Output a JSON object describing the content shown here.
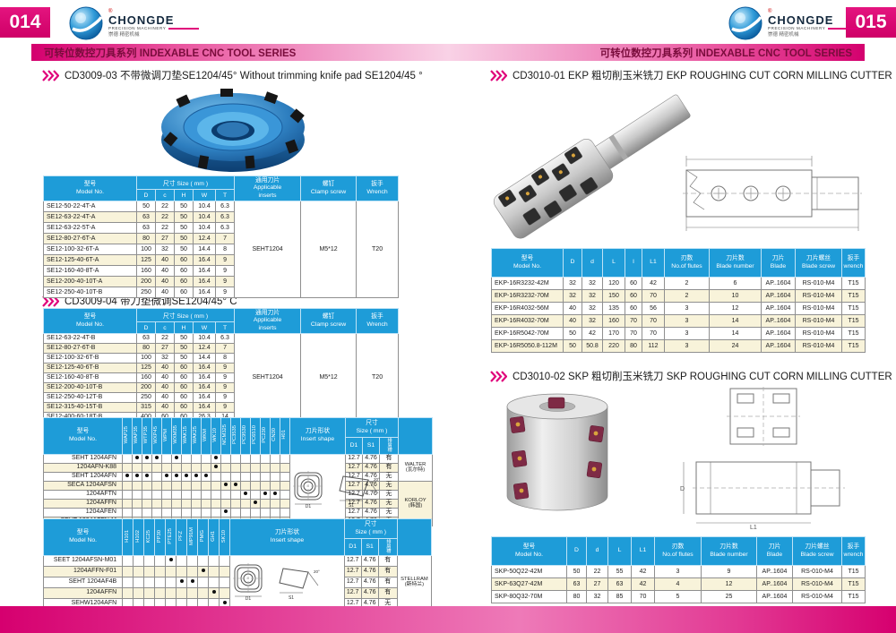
{
  "brand": {
    "wordmark": "CHONGDE",
    "sub": "PRECISION MACHINERY",
    "zh": "崇德 精密机械",
    "reg": "®"
  },
  "banner_text": "可转位数控刀具系列 INDEXABLE CNC TOOL SERIES",
  "left_page": {
    "number": "014",
    "sections": [
      {
        "title": "CD3009-03  不带微调刀垫SE1204/45°    Without trimming knife pad SE1204/45 °"
      },
      {
        "title": "CD3009-04 带刀垫微调SE1204/45°      C"
      }
    ]
  },
  "right_page": {
    "number": "015",
    "sections": [
      {
        "title": "CD3010-01  EKP 粗切削玉米铣刀  EKP ROUGHING CUT CORN MILLING CUTTER"
      },
      {
        "title": "CD3010-02  SKP 粗切削玉米铣刀  SKP ROUGHING CUT CORN MILLING CUTTER"
      }
    ]
  },
  "drawing_labels": {
    "d1": "D1",
    "s1": "S1",
    "angle": "20°",
    "D": "D",
    "L1": "L1"
  },
  "colors": {
    "accent_magenta": "#e0007a",
    "table_header_blue": "#1e9cd8",
    "row_beige": "#f8f3da",
    "banner_text": "#7a0c3c"
  },
  "tables": {
    "se_a": {
      "headers": {
        "model": [
          "型号",
          "Model No."
        ],
        "size": "尺寸 Size ( mm )",
        "size_cols": [
          "D",
          "c",
          "H",
          "W",
          "T"
        ],
        "inserts": [
          "通用刀片",
          "Applicable",
          "inserts"
        ],
        "screw": [
          "螺钉",
          "Clamp screw"
        ],
        "wrench": [
          "扳手",
          "Wrench"
        ]
      },
      "rows": [
        [
          "SE12-50-22-4T-A",
          "50",
          "22",
          "50",
          "10.4",
          "6.3"
        ],
        [
          "SE12-63-22-4T-A",
          "63",
          "22",
          "50",
          "10.4",
          "6.3"
        ],
        [
          "SE12-63-22-5T-A",
          "63",
          "22",
          "50",
          "10.4",
          "6.3"
        ],
        [
          "SE12-80-27-6T-A",
          "80",
          "27",
          "50",
          "12.4",
          "7"
        ],
        [
          "SE12-100-32-6T-A",
          "100",
          "32",
          "50",
          "14.4",
          "8"
        ],
        [
          "SE12-125-40-6T-A",
          "125",
          "40",
          "60",
          "16.4",
          "9"
        ],
        [
          "SE12-160-40-8T-A",
          "160",
          "40",
          "60",
          "16.4",
          "9"
        ],
        [
          "SE12-200-40-10T-A",
          "200",
          "40",
          "60",
          "16.4",
          "9"
        ],
        [
          "SE12-250-40-10T-B",
          "250",
          "40",
          "60",
          "16.4",
          "9"
        ]
      ],
      "inserts": "SEHT1204",
      "screw": "M5*12",
      "wrench": "T20"
    },
    "se_b": {
      "headers": {
        "model": [
          "型号",
          "Model No."
        ],
        "size": "尺寸 Size ( mm )",
        "size_cols": [
          "D",
          "c",
          "H",
          "W",
          "T"
        ],
        "inserts": [
          "通用刀片",
          "Applicable",
          "inserts"
        ],
        "screw": [
          "螺钉",
          "Clamp screw"
        ],
        "wrench": [
          "扳手",
          "Wrench"
        ]
      },
      "rows": [
        [
          "SE12-63-22-4T-B",
          "63",
          "22",
          "50",
          "10.4",
          "6.3"
        ],
        [
          "SE12-80-27-6T-B",
          "80",
          "27",
          "50",
          "12.4",
          "7"
        ],
        [
          "SE12-100-32-6T-B",
          "100",
          "32",
          "50",
          "14.4",
          "8"
        ],
        [
          "SE12-125-40-6T-B",
          "125",
          "40",
          "60",
          "16.4",
          "9"
        ],
        [
          "SE12-160-40-8T-B",
          "160",
          "40",
          "60",
          "16.4",
          "9"
        ],
        [
          "SE12-200-40-10T-B",
          "200",
          "40",
          "60",
          "16.4",
          "9"
        ],
        [
          "SE12-250-40-12T-B",
          "250",
          "40",
          "60",
          "16.4",
          "9"
        ],
        [
          "SE12-315-40-15T-B",
          "315",
          "40",
          "60",
          "16.4",
          "9"
        ],
        [
          "SE12-400-60-18T-B",
          "400",
          "60",
          "60",
          "26.3",
          "14"
        ]
      ],
      "inserts": "SEHT1204",
      "screw": "M5*12",
      "wrench": "T20"
    },
    "grades1": {
      "headers": {
        "model": [
          "型号",
          "Model No."
        ],
        "shape": [
          "刀片形状",
          "Insert shape"
        ],
        "size": [
          "尺寸",
          "Size ( mm )"
        ],
        "sub": [
          "D1",
          "S1",
          "排屑槽"
        ]
      },
      "cols": [
        "WAP25",
        "WAP35",
        "WTP35",
        "WXP45",
        "WPM",
        "WXM35",
        "WAK15",
        "WAK25",
        "WKM",
        "WK10",
        "NCM325",
        "PC3535",
        "PC9530",
        "PC6510",
        "PC230",
        "CN30",
        "H01"
      ],
      "rows": [
        {
          "model": "SEHT 1204AFN",
          "dots": [
            1,
            2,
            3,
            5,
            9
          ],
          "d1": "12.7",
          "s1": "4.76",
          "groove": "有"
        },
        {
          "model": "1204AFN-K88",
          "dots": [
            9
          ],
          "d1": "12.7",
          "s1": "4.76",
          "groove": "有"
        },
        {
          "model": "SEHT 1204AFN",
          "dots": [
            0,
            1,
            2,
            4,
            5,
            6,
            7,
            8
          ],
          "d1": "12.7",
          "s1": "4.76",
          "groove": "无"
        },
        {
          "model": "SECA 1204AFSN",
          "dots": [
            10,
            11
          ],
          "d1": "12.7",
          "s1": "4.76",
          "groove": "无"
        },
        {
          "model": "1204AFTN",
          "dots": [
            12,
            14,
            15
          ],
          "d1": "12.7",
          "s1": "4.76",
          "groove": "无"
        },
        {
          "model": "1204AFFN",
          "dots": [
            13
          ],
          "d1": "12.7",
          "s1": "4.76",
          "groove": "无"
        },
        {
          "model": "1204AFEN",
          "dots": [
            10
          ],
          "d1": "12.7",
          "s1": "4.76",
          "groove": "无"
        },
        {
          "model": "SEHT 1204AFFN-M",
          "dots": [
            16
          ],
          "d1": "12.7",
          "s1": "4.76",
          "groove": "无"
        }
      ],
      "brands": [
        {
          "name": "WALTER",
          "zh": "(瓦尔特)",
          "rows": 3
        },
        {
          "name": "KORLOY",
          "zh": "(韩国)",
          "rows": 5
        }
      ]
    },
    "grades2": {
      "headers": {
        "model": [
          "型号",
          "Model No."
        ],
        "shape": [
          "刀片形状",
          "Insert shape"
        ],
        "size": [
          "尺寸",
          "Size ( mm )"
        ],
        "sub": [
          "D1",
          "S1",
          "排屑槽"
        ]
      },
      "cols": [
        "H101",
        "H102",
        "KC25",
        "PP30",
        "PTE25",
        "PFZ",
        "MP91M",
        "PMG",
        "GH1",
        "SK10"
      ],
      "rows": [
        {
          "model": "SEET 1204AFSN-M01",
          "dots": [
            4
          ],
          "d1": "12.7",
          "s1": "4.76",
          "groove": "有"
        },
        {
          "model": "1204AFFN-F01",
          "dots": [
            7
          ],
          "d1": "12.7",
          "s1": "4.76",
          "groove": "有"
        },
        {
          "model": "SEHT 1204AF4B",
          "dots": [
            5,
            6
          ],
          "d1": "12.7",
          "s1": "4.76",
          "groove": "有"
        },
        {
          "model": "1204AFFN",
          "dots": [
            8
          ],
          "d1": "12.7",
          "s1": "4.76",
          "groove": "有"
        },
        {
          "model": "SEHW1204AFN",
          "dots": [
            9
          ],
          "d1": "12.7",
          "s1": "4.76",
          "groove": "无"
        }
      ],
      "brands": [
        {
          "name": "STELLRAM",
          "zh": "(斯特兰)",
          "rows": 5
        }
      ]
    },
    "ekp": {
      "cols": [
        [
          "型号",
          "Model No."
        ],
        [
          "D"
        ],
        [
          "d"
        ],
        [
          "L"
        ],
        [
          "l"
        ],
        [
          "L1"
        ],
        [
          "刃数",
          "No.of  flutes"
        ],
        [
          "刀片数",
          "Blade number"
        ],
        [
          "刀片",
          "Blade"
        ],
        [
          "刀片螺丝",
          "Blade screw"
        ],
        [
          "扳手",
          "wrench"
        ]
      ],
      "rows": [
        [
          "EKP-16R3232-42M",
          "32",
          "32",
          "120",
          "60",
          "42",
          "2",
          "6",
          "AP..1604",
          "RS-010-M4",
          "T15"
        ],
        [
          "EKP-16R3232-70M",
          "32",
          "32",
          "150",
          "60",
          "70",
          "2",
          "10",
          "AP..1604",
          "RS-010-M4",
          "T15"
        ],
        [
          "EKP-16R4032-56M",
          "40",
          "32",
          "135",
          "60",
          "56",
          "3",
          "12",
          "AP..1604",
          "RS-010-M4",
          "T15"
        ],
        [
          "EKP-16R4032-70M",
          "40",
          "32",
          "160",
          "70",
          "70",
          "3",
          "14",
          "AP..1604",
          "RS-010-M4",
          "T15"
        ],
        [
          "EKP-16R5042-70M",
          "50",
          "42",
          "170",
          "70",
          "70",
          "3",
          "14",
          "AP..1604",
          "RS-010-M4",
          "T15"
        ],
        [
          "EKP-16R5050.8-112M",
          "50",
          "50.8",
          "220",
          "80",
          "112",
          "3",
          "24",
          "AP..1604",
          "RS-010-M4",
          "T15"
        ]
      ]
    },
    "skp": {
      "cols": [
        [
          "型号",
          "Model No."
        ],
        [
          "D"
        ],
        [
          "d"
        ],
        [
          "L"
        ],
        [
          "L1"
        ],
        [
          "刃数",
          "No.of  flutes"
        ],
        [
          "刀片数",
          "Blade number"
        ],
        [
          "刀片",
          "Blade"
        ],
        [
          "刀片螺丝",
          "Blade screw"
        ],
        [
          "扳手",
          "wrench"
        ]
      ],
      "rows": [
        [
          "SKP-50Q22-42M",
          "50",
          "22",
          "55",
          "42",
          "3",
          "9",
          "AP..1604",
          "RS-010-M4",
          "T15"
        ],
        [
          "SKP-63Q27-42M",
          "63",
          "27",
          "63",
          "42",
          "4",
          "12",
          "AP..1604",
          "RS-010-M4",
          "T15"
        ],
        [
          "SKP-80Q32-70M",
          "80",
          "32",
          "85",
          "70",
          "5",
          "25",
          "AP..1604",
          "RS-010-M4",
          "T15"
        ]
      ]
    }
  }
}
